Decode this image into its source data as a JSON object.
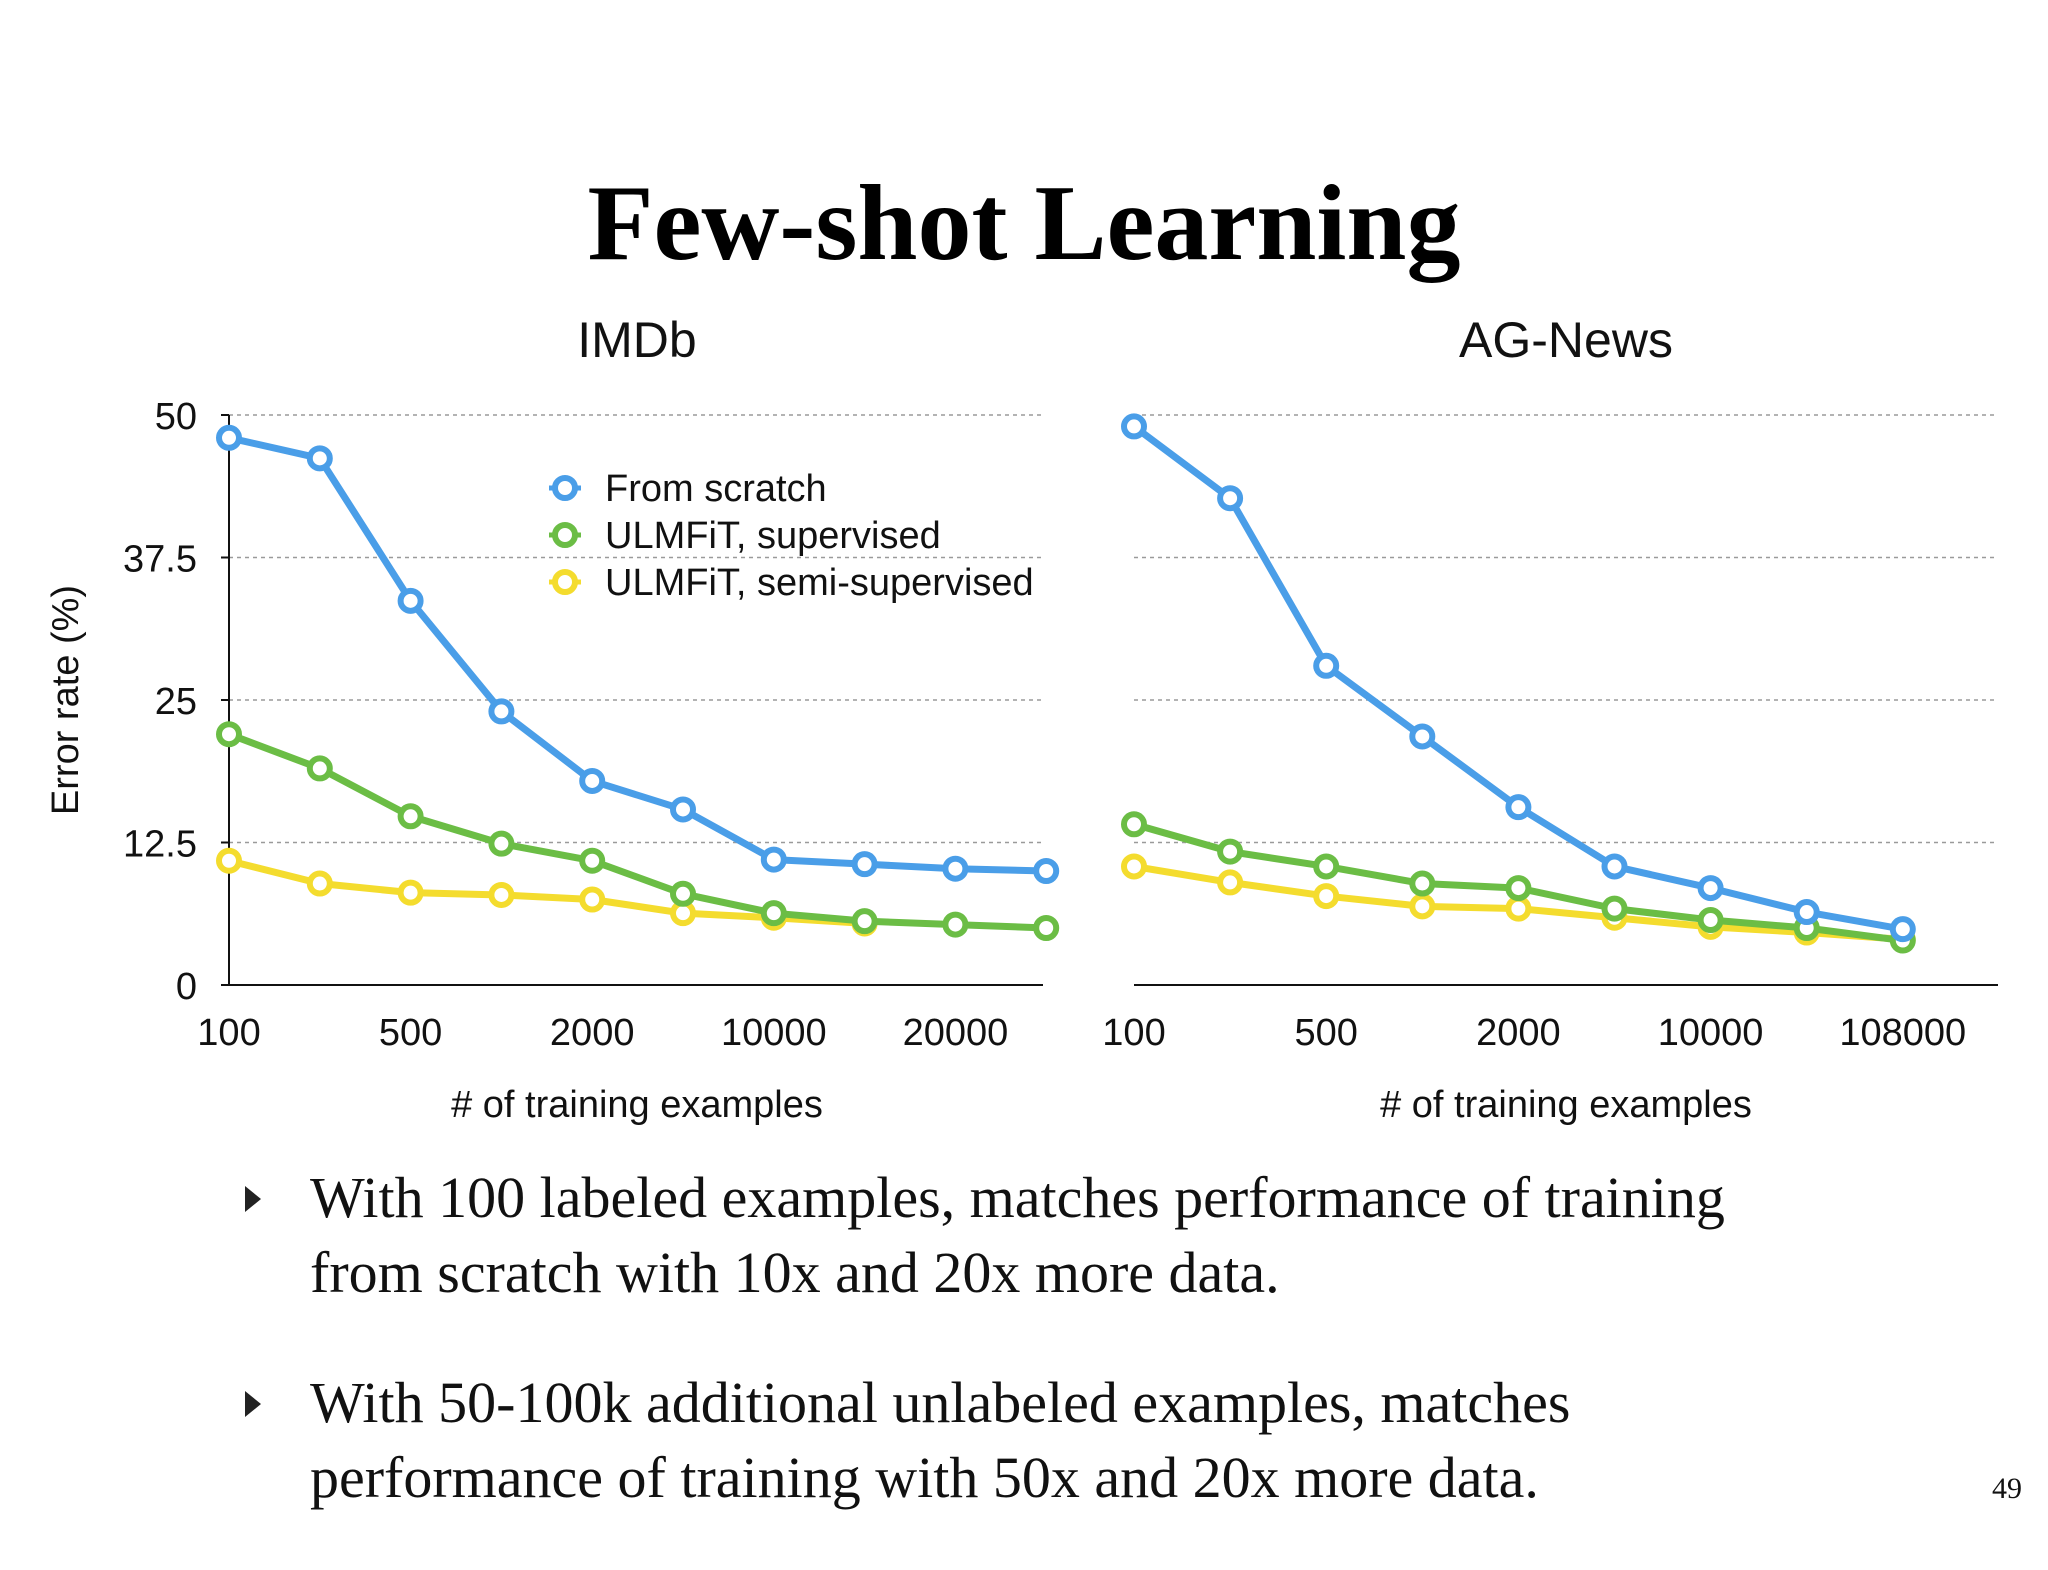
{
  "slide": {
    "title": "Few-shot Learning",
    "bullets": [
      "With 100 labeled examples, matches performance of training from scratch with 10x and 20x more data.",
      "With 50-100k additional unlabeled examples, matches performance of training with 50x and 20x more data."
    ],
    "page_number": "49"
  },
  "colors": {
    "from_scratch": "#4a9ee8",
    "supervised": "#6bbd45",
    "semi_supervised": "#f4dc2e"
  },
  "chart_data": [
    {
      "type": "line",
      "title": "IMDb",
      "xlabel": "# of training examples",
      "ylabel": "Error rate (%)",
      "x_tick_labels": [
        "100",
        "",
        "500",
        "",
        "2000",
        "",
        "10000",
        "",
        "20000",
        ""
      ],
      "y_ticks": [
        "0",
        "12.5",
        "25",
        "37.5",
        "50"
      ],
      "ylim": [
        0,
        50
      ],
      "grid": true,
      "legend": "top-right",
      "series": [
        {
          "name": "From scratch",
          "values": [
            48.0,
            46.2,
            33.7,
            24.0,
            17.9,
            15.4,
            11.0,
            10.6,
            10.2,
            10.0
          ]
        },
        {
          "name": "ULMFiT, supervised",
          "values": [
            22.0,
            19.0,
            14.8,
            12.4,
            10.9,
            8.0,
            6.3,
            5.6,
            5.3,
            5.0
          ]
        },
        {
          "name": "ULMFiT, semi-supervised",
          "values": [
            10.9,
            8.9,
            8.1,
            7.9,
            7.5,
            6.3,
            5.9,
            5.4,
            null,
            null
          ]
        }
      ]
    },
    {
      "type": "line",
      "title": "AG-News",
      "xlabel": "# of training examples",
      "ylabel": "",
      "x_tick_labels": [
        "100",
        "",
        "500",
        "",
        "2000",
        "",
        "10000",
        "",
        "108000"
      ],
      "ylim": [
        0,
        50
      ],
      "grid": true,
      "series": [
        {
          "name": "From scratch",
          "values": [
            49.0,
            42.7,
            28.0,
            21.8,
            15.6,
            10.4,
            8.5,
            6.4,
            4.9
          ]
        },
        {
          "name": "ULMFiT, supervised",
          "values": [
            14.1,
            11.7,
            10.4,
            8.9,
            8.5,
            6.7,
            5.7,
            5.0,
            3.9
          ]
        },
        {
          "name": "ULMFiT, semi-supervised",
          "values": [
            10.4,
            9.0,
            7.8,
            6.9,
            6.7,
            5.9,
            5.1,
            4.6,
            4.0
          ]
        }
      ]
    }
  ]
}
